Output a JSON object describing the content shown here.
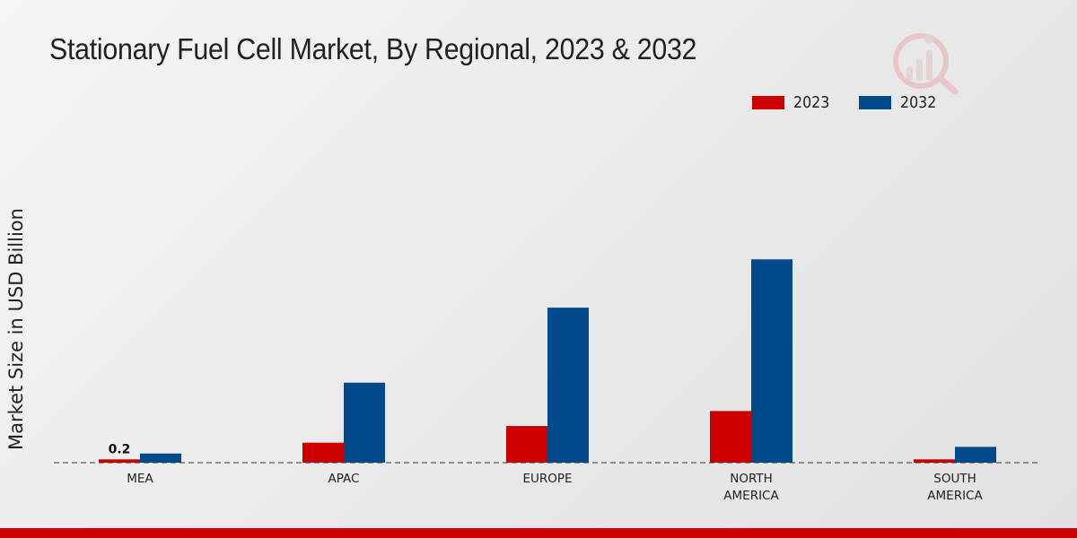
{
  "chart_data": {
    "type": "bar",
    "title": "Stationary Fuel Cell Market, By Regional, 2023 & 2032",
    "xlabel": "",
    "ylabel": "Market Size in USD Billion",
    "categories": [
      [
        "MEA"
      ],
      [
        "APAC"
      ],
      [
        "EUROPE"
      ],
      [
        "NORTH",
        "AMERICA"
      ],
      [
        "SOUTH",
        "AMERICA"
      ]
    ],
    "series": [
      {
        "name": "2023",
        "color": "#cc0000",
        "values": [
          0.2,
          1.2,
          2.2,
          3.1,
          0.2
        ]
      },
      {
        "name": "2032",
        "color": "#004a8c",
        "values": [
          0.55,
          4.8,
          9.3,
          12.2,
          0.95
        ]
      }
    ],
    "data_labels": [
      {
        "series": 0,
        "index": 0,
        "text": "0.2"
      }
    ],
    "ylim": [
      0,
      17
    ],
    "grid": false,
    "legend_position": "top-right"
  },
  "colors": {
    "accent": "#cc0000",
    "footer": "#cc0000"
  },
  "icons": {
    "logo": "market-research-logo-icon"
  }
}
